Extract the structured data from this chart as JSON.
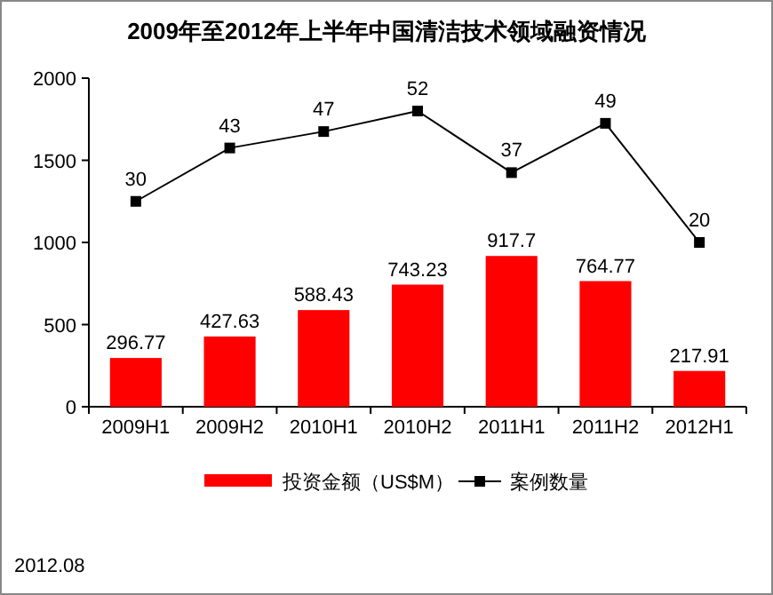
{
  "chart_data": {
    "type": "bar",
    "title": "2009年至2012年上半年中国清洁技术领域融资情况",
    "categories": [
      "2009H1",
      "2009H2",
      "2010H1",
      "2010H2",
      "2011H1",
      "2011H2",
      "2012H1"
    ],
    "series": [
      {
        "name": "投资金额（US$M）",
        "color": "#ff0000",
        "values": [
          296.77,
          427.63,
          588.43,
          743.23,
          917.7,
          764.77,
          217.91
        ]
      },
      {
        "name": "案例数量",
        "color": "#000000",
        "type": "line",
        "axis": "y2",
        "marker": "square",
        "values": [
          30,
          43,
          47,
          52,
          37,
          49,
          20
        ]
      }
    ],
    "ylim": [
      0,
      2000
    ],
    "yticks": [
      0,
      500,
      1000,
      1500,
      2000
    ],
    "y2lim": [
      -20,
      60
    ],
    "data_labels": true,
    "legend": "bottom",
    "grid": false,
    "annotations": [
      "2012.08"
    ]
  }
}
